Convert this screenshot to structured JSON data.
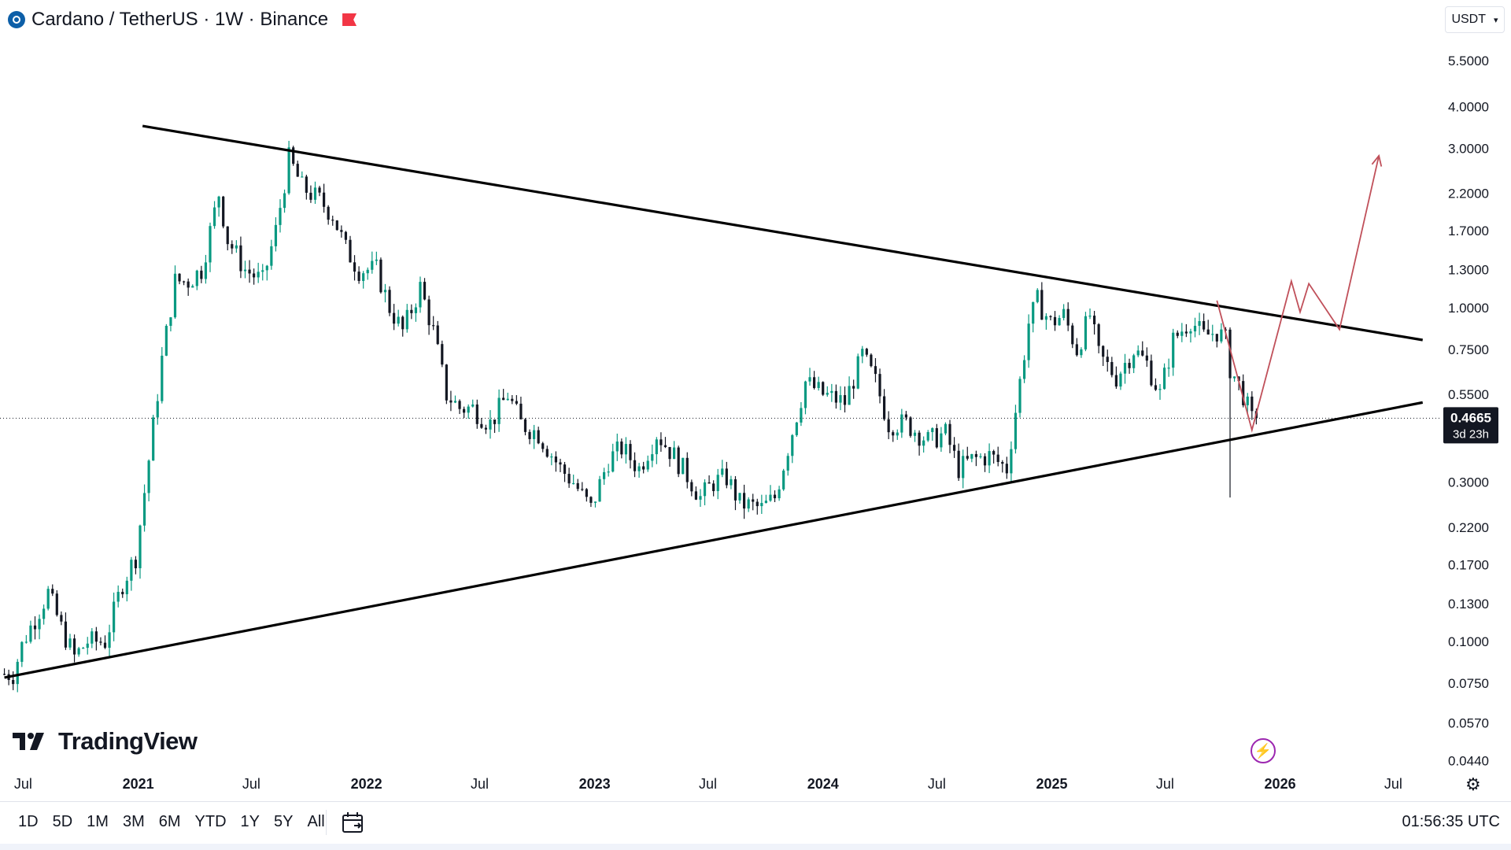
{
  "header": {
    "title": "Cardano / TetherUS · 1W · Binance",
    "currency": "USDT"
  },
  "branding": {
    "logo_text": "TradingView"
  },
  "price_label": {
    "price": "0.4665",
    "countdown": "3d 23h"
  },
  "bottom_bar": {
    "ranges": [
      "1D",
      "5D",
      "1M",
      "3M",
      "6M",
      "YTD",
      "1Y",
      "5Y",
      "All"
    ],
    "time": "01:56:35 UTC"
  },
  "colors": {
    "up": "#089981",
    "up_body": "#089981",
    "down": "#131722",
    "trendline": "#000000",
    "projection": "#c0505a",
    "bolt": "#9c27b0"
  },
  "icons": [
    "coin-logo-icon",
    "flag-icon",
    "chevron-down-icon",
    "calendar-icon",
    "bolt-icon",
    "gear-icon"
  ],
  "chart_data": {
    "type": "candlestick",
    "scale": "log",
    "ylim": [
      0.042,
      6.5
    ],
    "xlim": [
      "2020-05-25",
      "2026-09-14"
    ],
    "y_ticks": [
      "5.5000",
      "4.0000",
      "3.0000",
      "2.2000",
      "1.7000",
      "1.3000",
      "1.0000",
      "0.7500",
      "0.5500",
      "0.4665",
      "0.3000",
      "0.2200",
      "0.1700",
      "0.1300",
      "0.1000",
      "0.0750",
      "0.0570",
      "0.0440"
    ],
    "x_ticks": [
      {
        "label": "Jul",
        "date": "2020-07-01",
        "year": false
      },
      {
        "label": "2021",
        "date": "2021-01-01",
        "year": true
      },
      {
        "label": "Jul",
        "date": "2021-07-01",
        "year": false
      },
      {
        "label": "2022",
        "date": "2022-01-01",
        "year": true
      },
      {
        "label": "Jul",
        "date": "2022-07-01",
        "year": false
      },
      {
        "label": "2023",
        "date": "2023-01-01",
        "year": true
      },
      {
        "label": "Jul",
        "date": "2023-07-01",
        "year": false
      },
      {
        "label": "2024",
        "date": "2024-01-01",
        "year": true
      },
      {
        "label": "Jul",
        "date": "2024-07-01",
        "year": false
      },
      {
        "label": "2025",
        "date": "2025-01-01",
        "year": true
      },
      {
        "label": "Jul",
        "date": "2025-07-01",
        "year": false
      },
      {
        "label": "2026",
        "date": "2026-01-01",
        "year": true
      },
      {
        "label": "Jul",
        "date": "2026-07-01",
        "year": false
      }
    ],
    "last_price": 0.4665,
    "anchors": [
      [
        "2020-06-01",
        0.08
      ],
      [
        "2020-06-15",
        0.08
      ],
      [
        "2020-07-01",
        0.1
      ],
      [
        "2020-08-10",
        0.14
      ],
      [
        "2020-08-31",
        0.11
      ],
      [
        "2020-09-21",
        0.09
      ],
      [
        "2020-10-12",
        0.1
      ],
      [
        "2020-11-09",
        0.1
      ],
      [
        "2020-12-07",
        0.15
      ],
      [
        "2020-12-28",
        0.18
      ],
      [
        "2021-01-18",
        0.35
      ],
      [
        "2021-02-08",
        0.7
      ],
      [
        "2021-03-01",
        1.2
      ],
      [
        "2021-03-22",
        1.2
      ],
      [
        "2021-04-12",
        1.3
      ],
      [
        "2021-05-10",
        2.2
      ],
      [
        "2021-05-24",
        1.6
      ],
      [
        "2021-06-21",
        1.3
      ],
      [
        "2021-07-19",
        1.2
      ],
      [
        "2021-08-09",
        1.7
      ],
      [
        "2021-08-30",
        2.8
      ],
      [
        "2021-09-20",
        2.3
      ],
      [
        "2021-10-18",
        2.1
      ],
      [
        "2021-11-08",
        1.9
      ],
      [
        "2021-11-29",
        1.5
      ],
      [
        "2021-12-20",
        1.3
      ],
      [
        "2022-01-17",
        1.3
      ],
      [
        "2022-02-07",
        1.0
      ],
      [
        "2022-02-28",
        0.85
      ],
      [
        "2022-03-28",
        1.15
      ],
      [
        "2022-04-18",
        0.85
      ],
      [
        "2022-05-09",
        0.55
      ],
      [
        "2022-05-30",
        0.5
      ],
      [
        "2022-06-20",
        0.5
      ],
      [
        "2022-07-18",
        0.45
      ],
      [
        "2022-08-15",
        0.55
      ],
      [
        "2022-09-05",
        0.45
      ],
      [
        "2022-10-03",
        0.42
      ],
      [
        "2022-11-07",
        0.33
      ],
      [
        "2022-11-28",
        0.3
      ],
      [
        "2022-12-26",
        0.25
      ],
      [
        "2023-01-23",
        0.35
      ],
      [
        "2023-02-13",
        0.38
      ],
      [
        "2023-03-13",
        0.33
      ],
      [
        "2023-04-10",
        0.42
      ],
      [
        "2023-05-08",
        0.36
      ],
      [
        "2023-06-05",
        0.3
      ],
      [
        "2023-06-19",
        0.27
      ],
      [
        "2023-07-10",
        0.3
      ],
      [
        "2023-07-31",
        0.31
      ],
      [
        "2023-08-21",
        0.26
      ],
      [
        "2023-09-25",
        0.25
      ],
      [
        "2023-10-16",
        0.27
      ],
      [
        "2023-11-06",
        0.38
      ],
      [
        "2023-12-04",
        0.6
      ],
      [
        "2024-01-01",
        0.55
      ],
      [
        "2024-02-05",
        0.52
      ],
      [
        "2024-03-04",
        0.72
      ],
      [
        "2024-03-25",
        0.6
      ],
      [
        "2024-04-15",
        0.45
      ],
      [
        "2024-05-13",
        0.45
      ],
      [
        "2024-06-17",
        0.4
      ],
      [
        "2024-07-15",
        0.42
      ],
      [
        "2024-08-05",
        0.33
      ],
      [
        "2024-08-26",
        0.35
      ],
      [
        "2024-09-23",
        0.36
      ],
      [
        "2024-10-21",
        0.33
      ],
      [
        "2024-11-11",
        0.6
      ],
      [
        "2024-11-25",
        0.9
      ],
      [
        "2024-12-09",
        1.05
      ],
      [
        "2024-12-30",
        0.9
      ],
      [
        "2025-01-20",
        0.95
      ],
      [
        "2025-02-10",
        0.75
      ],
      [
        "2025-03-03",
        0.95
      ],
      [
        "2025-03-17",
        0.72
      ],
      [
        "2025-04-14",
        0.62
      ],
      [
        "2025-05-12",
        0.75
      ],
      [
        "2025-06-02",
        0.68
      ],
      [
        "2025-06-23",
        0.55
      ],
      [
        "2025-07-14",
        0.8
      ],
      [
        "2025-08-11",
        0.92
      ],
      [
        "2025-09-01",
        0.82
      ],
      [
        "2025-09-22",
        0.85
      ],
      [
        "2025-10-06",
        0.8
      ],
      [
        "2025-10-13",
        0.66
      ],
      [
        "2025-11-03",
        0.55
      ],
      [
        "2025-11-17",
        0.46
      ],
      [
        "2025-11-24",
        0.4665
      ]
    ],
    "wick_events": [
      {
        "date": "2025-10-13",
        "low": 0.27
      }
    ],
    "trendlines": [
      {
        "name": "resistance",
        "from": [
          "2021-01-08",
          3.5
        ],
        "to": [
          "2026-08-17",
          0.8
        ]
      },
      {
        "name": "support",
        "from": [
          "2020-06-01",
          0.078
        ],
        "to": [
          "2026-08-17",
          0.52
        ]
      }
    ],
    "projection": [
      [
        "2025-09-22",
        1.05
      ],
      [
        "2025-11-17",
        0.43
      ],
      [
        "2026-01-19",
        1.2
      ],
      [
        "2026-02-02",
        0.97
      ],
      [
        "2026-02-16",
        1.18
      ],
      [
        "2026-04-06",
        0.86
      ],
      [
        "2026-06-08",
        2.85
      ]
    ]
  }
}
